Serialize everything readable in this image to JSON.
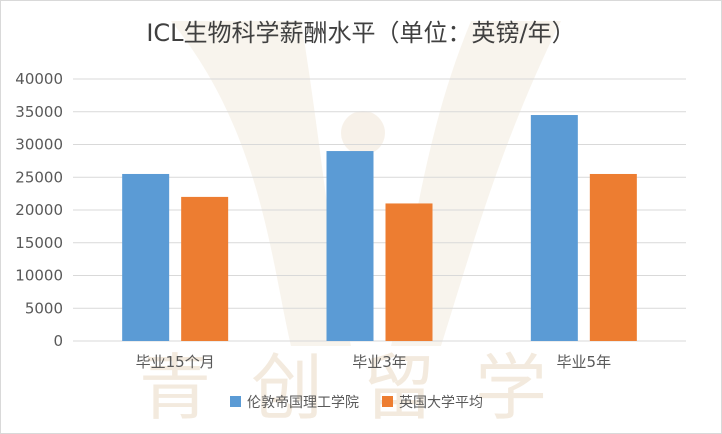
{
  "chart_data": {
    "type": "bar",
    "title": "ICL生物科学薪酬水平（单位：英镑/年）",
    "categories": [
      "毕业15个月",
      "毕业3年",
      "毕业5年"
    ],
    "series": [
      {
        "name": "伦敦帝国理工学院",
        "color": "#5b9bd5",
        "values": [
          25500,
          29000,
          34500
        ]
      },
      {
        "name": "英国大学平均",
        "color": "#ed7d31",
        "values": [
          22000,
          21000,
          25500
        ]
      }
    ],
    "ylim": [
      0,
      40000
    ],
    "yticks": [
      0,
      5000,
      10000,
      15000,
      20000,
      25000,
      30000,
      35000,
      40000
    ],
    "grid": true,
    "legend": "bottom",
    "watermark": "青创留学"
  }
}
